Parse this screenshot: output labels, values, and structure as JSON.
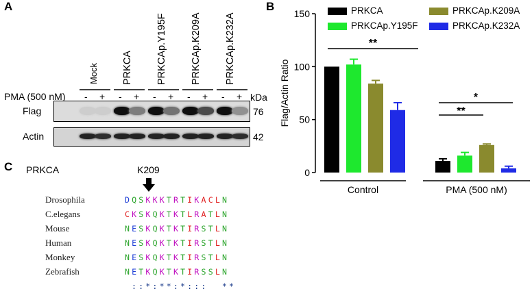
{
  "panel_a": {
    "letter": "A",
    "lanes": [
      "Mock",
      "PRKCA",
      "PRKCAp.Y195F",
      "PRKCAp.K209A",
      "PRKCAp.K232A"
    ],
    "pma_label": "PMA (500 nM)",
    "pma_signs": [
      "-",
      "+",
      "-",
      "+",
      "-",
      "+",
      "-",
      "+",
      "-",
      "+"
    ],
    "kda_label": "kDa",
    "rows": [
      {
        "name": "Flag",
        "kda": "76"
      },
      {
        "name": "Actin",
        "kda": "42"
      }
    ]
  },
  "panel_b": {
    "letter": "B",
    "legend": [
      {
        "name": "PRKCA",
        "color": "#000000"
      },
      {
        "name": "PRKCAp.Y195F",
        "color": "#1ee82e"
      },
      {
        "name": "PRKCAp.K209A",
        "color": "#8a8a2e"
      },
      {
        "name": "PRKCAp.K232A",
        "color": "#1f2be6"
      }
    ],
    "significance": [
      {
        "label": "**",
        "group": "Control"
      },
      {
        "label": "**",
        "group": "PMA (500 nM)"
      },
      {
        "label": "*",
        "group": "PMA (500 nM)"
      }
    ]
  },
  "chart_data": {
    "type": "bar",
    "ylabel": "Flag/Actin Ratio",
    "xlabel": "",
    "ylim": [
      0,
      150
    ],
    "yticks": [
      "0",
      "50",
      "100",
      "150"
    ],
    "categories": [
      "Control",
      "PMA (500 nM)"
    ],
    "series": [
      {
        "name": "PRKCA",
        "values": [
          100,
          11
        ],
        "errors": [
          0,
          2
        ],
        "color": "#000000"
      },
      {
        "name": "PRKCAp.Y195F",
        "values": [
          102,
          16
        ],
        "errors": [
          5,
          3
        ],
        "color": "#1ee82e"
      },
      {
        "name": "PRKCAp.K209A",
        "values": [
          84,
          26
        ],
        "errors": [
          3,
          1
        ],
        "color": "#8a8a2e"
      },
      {
        "name": "PRKCAp.K232A",
        "values": [
          59,
          4
        ],
        "errors": [
          7,
          2
        ],
        "color": "#1f2be6"
      }
    ],
    "grid": false,
    "legend": "top"
  },
  "panel_c": {
    "letter": "C",
    "gene": "PRKCA",
    "site": "K209",
    "species": [
      "Drosophila",
      "C.elegans",
      "Mouse",
      "Human",
      "Monkey",
      "Zebrafish"
    ],
    "sequences": [
      "DQSKKKTRTIKACLN",
      "CKSKQKTKTLRATLN",
      "NESKQKTKTIRSTLN",
      "NESKQKTKTIRSTLN",
      "NESKQKTKTIRSTLN",
      "NETKQKTKTIRSSLN"
    ],
    "conservation": "::*:**:*:::  **",
    "residue_colors": {
      "D": "#1f3fd6",
      "E": "#1f3fd6",
      "K": "#c010c0",
      "R": "#c010c0",
      "S": "#2da52d",
      "T": "#2da52d",
      "N": "#2da52d",
      "Q": "#2da52d",
      "A": "#e02020",
      "L": "#e02020",
      "I": "#e02020",
      "C": "#e02020"
    }
  }
}
